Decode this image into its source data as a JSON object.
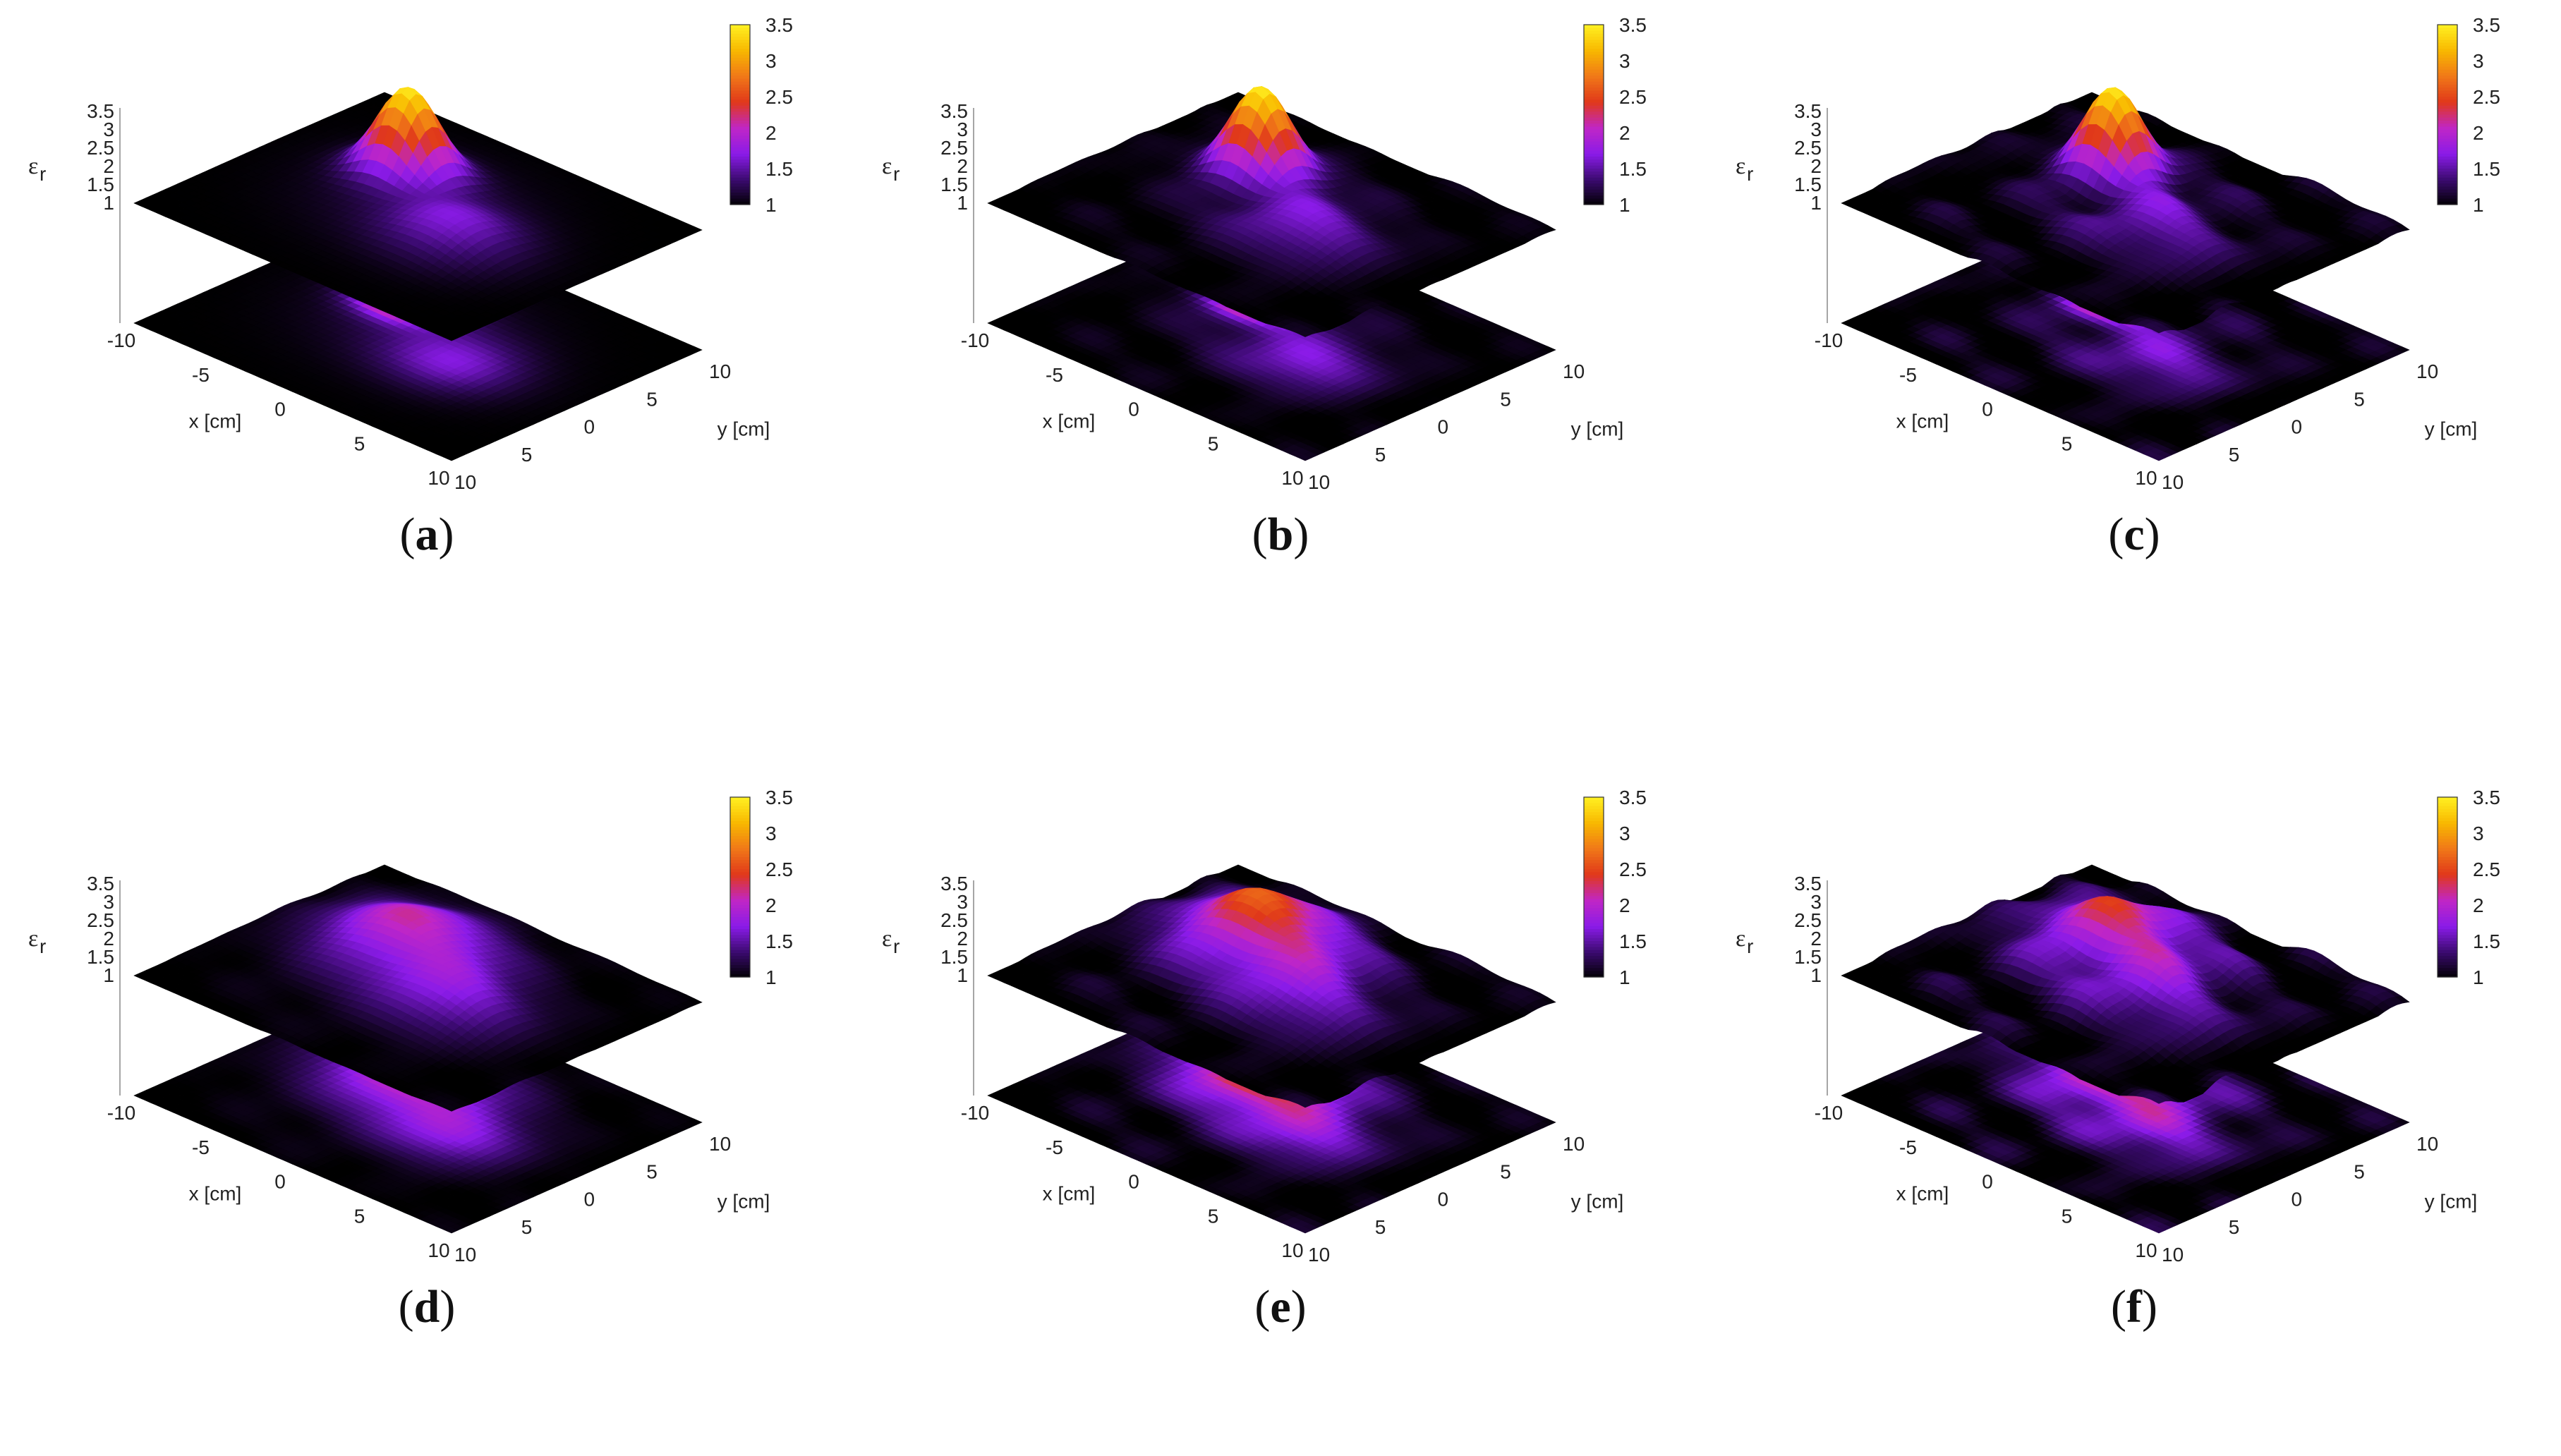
{
  "figure": {
    "panels": [
      {
        "id": "a",
        "label_open": "(",
        "label_letter": "a",
        "label_close": ")"
      },
      {
        "id": "b",
        "label_open": "(",
        "label_letter": "b",
        "label_close": ")"
      },
      {
        "id": "c",
        "label_open": "(",
        "label_letter": "c",
        "label_close": ")"
      },
      {
        "id": "d",
        "label_open": "(",
        "label_letter": "d",
        "label_close": ")"
      },
      {
        "id": "e",
        "label_open": "(",
        "label_letter": "e",
        "label_close": ")"
      },
      {
        "id": "f",
        "label_open": "(",
        "label_letter": "f",
        "label_close": ")"
      }
    ]
  },
  "chart_data": {
    "type": "surface3d",
    "xlabel": "x [cm]",
    "ylabel": "y [cm]",
    "zlabel": "ε",
    "zlabel_subscript": "r",
    "x_ticks": [
      "-10",
      "-5",
      "0",
      "5",
      "10"
    ],
    "y_ticks": [
      "10",
      "5",
      "0",
      "5",
      "10"
    ],
    "z_ticks": [
      "1",
      "1.5",
      "2",
      "2.5",
      "3",
      "3.5"
    ],
    "colorbar_ticks": [
      "1",
      "1.5",
      "2",
      "2.5",
      "3",
      "3.5"
    ],
    "xlim": [
      -10,
      10
    ],
    "ylim": [
      -10,
      10
    ],
    "zlim": [
      1,
      3.5
    ],
    "colormap": [
      "#000000",
      "#3a0a6e",
      "#8a1be8",
      "#c026c6",
      "#e0381a",
      "#f07818",
      "#f8b800",
      "#ffee20"
    ],
    "colorbar_stops": [
      1,
      1.36,
      1.72,
      2.08,
      2.44,
      2.8,
      3.16,
      3.5
    ],
    "panels": [
      {
        "id": "a",
        "peak_eps": 3.35,
        "bump_eps": 1.6,
        "ripple": 0.0,
        "smooth": false
      },
      {
        "id": "b",
        "peak_eps": 3.3,
        "bump_eps": 1.6,
        "ripple": 0.08,
        "smooth": false
      },
      {
        "id": "c",
        "peak_eps": 3.2,
        "bump_eps": 1.55,
        "ripple": 0.16,
        "smooth": false
      },
      {
        "id": "d",
        "peak_eps": 1.85,
        "bump_eps": 1.6,
        "ripple": 0.04,
        "smooth": true
      },
      {
        "id": "e",
        "peak_eps": 2.3,
        "bump_eps": 1.6,
        "ripple": 0.12,
        "smooth": true
      },
      {
        "id": "f",
        "peak_eps": 2.0,
        "bump_eps": 1.55,
        "ripple": 0.2,
        "smooth": true
      }
    ]
  }
}
